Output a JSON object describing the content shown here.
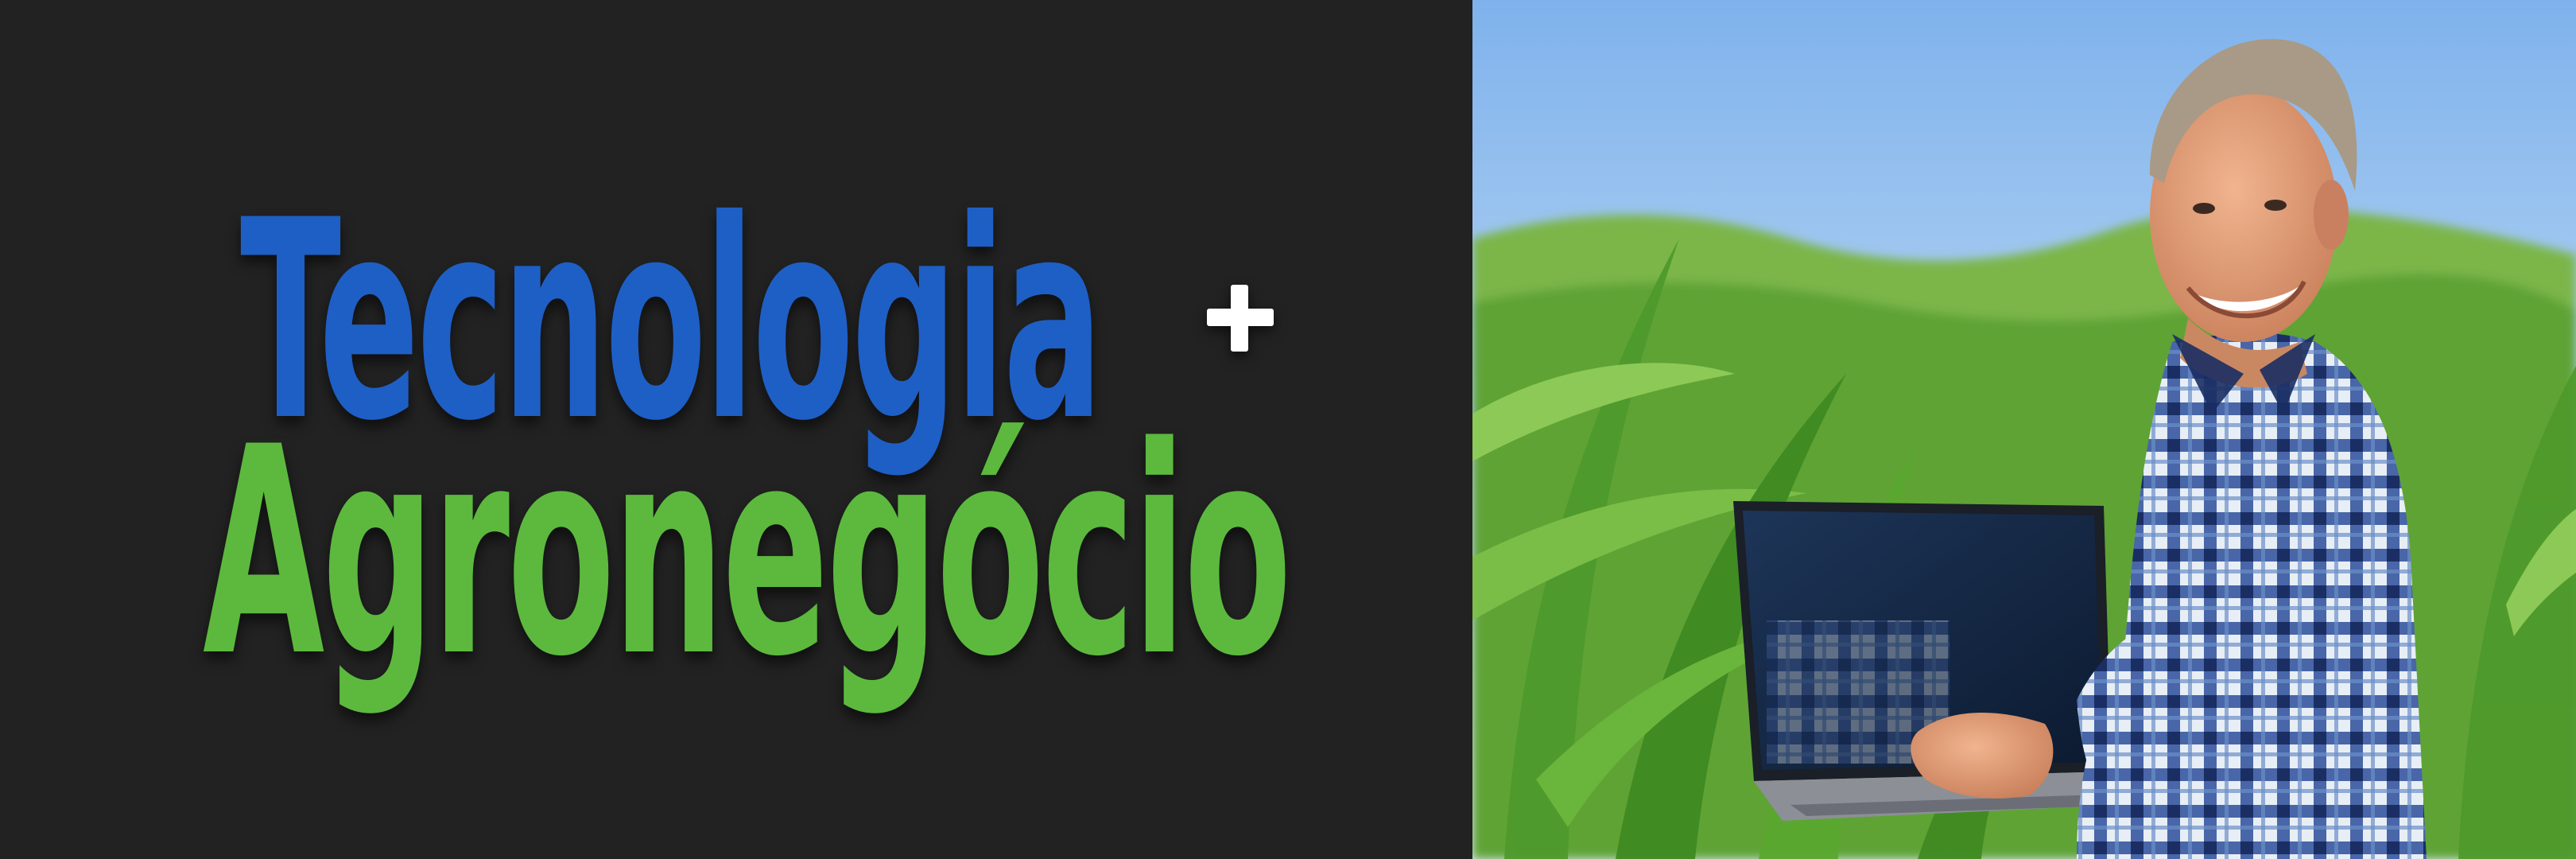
{
  "headline": {
    "line1": "Tecnologia",
    "plus": "+",
    "line2": "Agronegócio"
  },
  "colors": {
    "background": "#222222",
    "line1": "#1e5fc6",
    "line2": "#5cb93e",
    "plus": "#ffffff"
  },
  "photo": {
    "subject": "farmer-with-laptop-in-cornfield"
  }
}
